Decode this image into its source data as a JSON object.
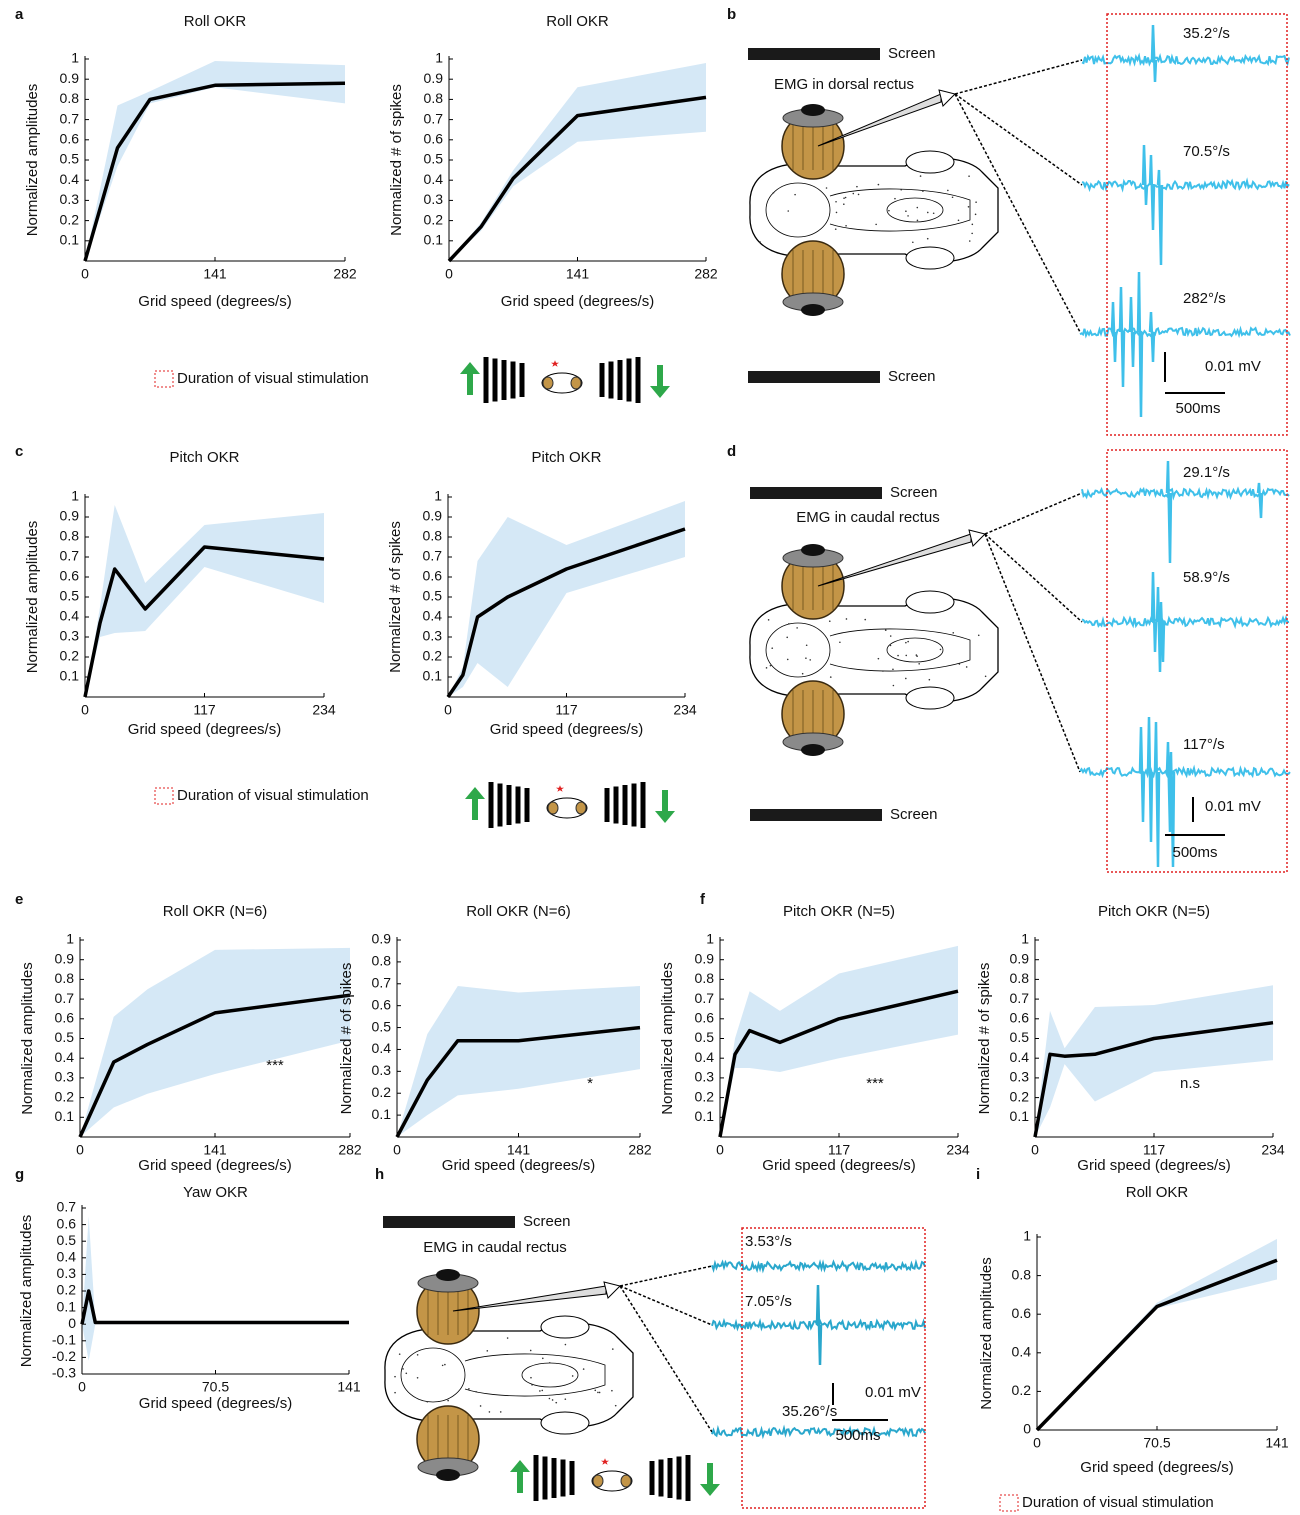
{
  "chart_data": [
    {
      "type": "line",
      "title": "Roll OKR",
      "xlabel": "Grid speed (degrees/s)",
      "ylabel": "Normalized amplitudes",
      "x": [
        0,
        35.2,
        70.5,
        141,
        282
      ],
      "values": [
        0,
        0.56,
        0.8,
        0.87,
        0.88
      ],
      "band_lower": [
        0,
        0.47,
        0.78,
        0.86,
        0.78
      ],
      "band_upper": [
        0,
        0.77,
        0.84,
        0.99,
        0.97
      ],
      "color": "#000000",
      "band_color": "#d5e8f6",
      "xlim": [
        0,
        282
      ],
      "ylim": [
        0,
        1
      ],
      "xticks": [
        0,
        141,
        282
      ],
      "yticks": [
        0.1,
        0.2,
        0.3,
        0.4,
        0.5,
        0.6,
        0.7,
        0.8,
        0.9,
        1
      ]
    },
    {
      "type": "line",
      "title": "Roll OKR",
      "xlabel": "Grid speed (degrees/s)",
      "ylabel": "Normalized # of spikes",
      "x": [
        0,
        35.2,
        70.5,
        141,
        282
      ],
      "values": [
        0,
        0.17,
        0.41,
        0.72,
        0.81
      ],
      "band_lower": [
        0,
        0.15,
        0.37,
        0.59,
        0.64
      ],
      "band_upper": [
        0,
        0.19,
        0.45,
        0.86,
        0.98
      ],
      "color": "#000000",
      "band_color": "#d5e8f6",
      "xlim": [
        0,
        282
      ],
      "ylim": [
        0,
        1
      ],
      "xticks": [
        0,
        141,
        282
      ],
      "yticks": [
        0.1,
        0.2,
        0.3,
        0.4,
        0.5,
        0.6,
        0.7,
        0.8,
        0.9,
        1
      ]
    },
    {
      "type": "line",
      "title": "Pitch OKR",
      "xlabel": "Grid speed (degrees/s)",
      "ylabel": "Normalized amplitudes",
      "x": [
        0,
        14.7,
        29.1,
        58.9,
        117,
        234
      ],
      "values": [
        0,
        0.37,
        0.64,
        0.44,
        0.75,
        0.69
      ],
      "band_lower": [
        0,
        0.3,
        0.32,
        0.33,
        0.65,
        0.47
      ],
      "band_upper": [
        0,
        0.45,
        0.96,
        0.57,
        0.86,
        0.92
      ],
      "color": "#000000",
      "band_color": "#d5e8f6",
      "xlim": [
        0,
        234
      ],
      "ylim": [
        0,
        1
      ],
      "xticks": [
        0,
        117,
        234
      ],
      "yticks": [
        0.1,
        0.2,
        0.3,
        0.4,
        0.5,
        0.6,
        0.7,
        0.8,
        0.9,
        1
      ]
    },
    {
      "type": "line",
      "title": "Pitch OKR",
      "xlabel": "Grid speed (degrees/s)",
      "ylabel": "Normalized # of spikes",
      "x": [
        0,
        14.7,
        29.1,
        58.9,
        117,
        234
      ],
      "values": [
        0,
        0.11,
        0.4,
        0.5,
        0.64,
        0.84
      ],
      "band_lower": [
        0,
        0.05,
        0.17,
        0.05,
        0.52,
        0.7
      ],
      "band_upper": [
        0,
        0.15,
        0.68,
        0.9,
        0.76,
        0.98
      ],
      "color": "#000000",
      "band_color": "#d5e8f6",
      "xlim": [
        0,
        234
      ],
      "ylim": [
        0,
        1
      ],
      "xticks": [
        0,
        117,
        234
      ],
      "yticks": [
        0.1,
        0.2,
        0.3,
        0.4,
        0.5,
        0.6,
        0.7,
        0.8,
        0.9,
        1
      ]
    },
    {
      "type": "line",
      "title": "Roll OKR (N=6)",
      "xlabel": "Grid speed (degrees/s)",
      "ylabel": "Normalized amplitudes",
      "x": [
        0,
        35.2,
        70.5,
        141,
        282
      ],
      "values": [
        0,
        0.38,
        0.47,
        0.63,
        0.72
      ],
      "band_lower": [
        0,
        0.15,
        0.22,
        0.32,
        0.49
      ],
      "band_upper": [
        0,
        0.61,
        0.75,
        0.95,
        0.96
      ],
      "color": "#000000",
      "band_color": "#d5e8f6",
      "xlim": [
        0,
        282
      ],
      "ylim": [
        0,
        1
      ],
      "xticks": [
        0,
        141,
        282
      ],
      "yticks": [
        0.1,
        0.2,
        0.3,
        0.4,
        0.5,
        0.6,
        0.7,
        0.8,
        0.9,
        1
      ],
      "annotation": "***"
    },
    {
      "type": "line",
      "title": "Roll OKR (N=6)",
      "xlabel": "Grid speed (degrees/s)",
      "ylabel": "Normalized # of spikes",
      "x": [
        0,
        35.2,
        70.5,
        141,
        282
      ],
      "values": [
        0,
        0.26,
        0.44,
        0.44,
        0.5
      ],
      "band_lower": [
        0,
        0.1,
        0.19,
        0.22,
        0.31
      ],
      "band_upper": [
        0,
        0.47,
        0.69,
        0.66,
        0.69
      ],
      "color": "#000000",
      "band_color": "#d5e8f6",
      "xlim": [
        0,
        282
      ],
      "ylim": [
        0,
        0.9
      ],
      "xticks": [
        0,
        141,
        282
      ],
      "yticks": [
        0.1,
        0.2,
        0.3,
        0.4,
        0.5,
        0.6,
        0.7,
        0.8,
        0.9
      ],
      "annotation": "*"
    },
    {
      "type": "line",
      "title": "Pitch OKR (N=5)",
      "xlabel": "Grid speed (degrees/s)",
      "ylabel": "Normalized amplitudes",
      "x": [
        0,
        14.7,
        29.1,
        58.9,
        117,
        234
      ],
      "values": [
        0,
        0.42,
        0.54,
        0.48,
        0.6,
        0.74
      ],
      "band_lower": [
        0,
        0.35,
        0.35,
        0.33,
        0.4,
        0.52
      ],
      "band_upper": [
        0,
        0.5,
        0.74,
        0.64,
        0.83,
        0.97
      ],
      "color": "#000000",
      "band_color": "#d5e8f6",
      "xlim": [
        0,
        234
      ],
      "ylim": [
        0,
        1
      ],
      "xticks": [
        0,
        117,
        234
      ],
      "yticks": [
        0.1,
        0.2,
        0.3,
        0.4,
        0.5,
        0.6,
        0.7,
        0.8,
        0.9,
        1
      ],
      "annotation": "***"
    },
    {
      "type": "line",
      "title": "Pitch OKR (N=5)",
      "xlabel": "Grid speed (degrees/s)",
      "ylabel": "Normalized # of spikes",
      "x": [
        0,
        14.7,
        29.1,
        58.9,
        117,
        234
      ],
      "values": [
        0,
        0.42,
        0.41,
        0.42,
        0.5,
        0.58
      ],
      "band_lower": [
        0,
        0.15,
        0.37,
        0.18,
        0.33,
        0.39
      ],
      "band_upper": [
        0,
        0.64,
        0.45,
        0.66,
        0.67,
        0.77
      ],
      "color": "#000000",
      "band_color": "#d5e8f6",
      "xlim": [
        0,
        234
      ],
      "ylim": [
        0,
        1
      ],
      "xticks": [
        0,
        117,
        234
      ],
      "yticks": [
        0.1,
        0.2,
        0.3,
        0.4,
        0.5,
        0.6,
        0.7,
        0.8,
        0.9,
        1
      ],
      "annotation": "n.s"
    },
    {
      "type": "line",
      "title": "Yaw OKR",
      "xlabel": "Grid speed (degrees/s)",
      "ylabel": "Normalized amplitudes",
      "x": [
        0,
        3.53,
        7.05,
        35.26,
        141
      ],
      "values": [
        0,
        0.2,
        0.01,
        0.01,
        0.01
      ],
      "band_lower": [
        0,
        -0.22,
        0,
        0,
        0
      ],
      "band_upper": [
        0,
        0.65,
        0.02,
        0.02,
        0.02
      ],
      "color": "#000000",
      "band_color": "#d5e8f6",
      "xlim": [
        0,
        141
      ],
      "ylim": [
        -0.3,
        0.7
      ],
      "xticks": [
        0,
        70.5,
        141
      ],
      "yticks": [
        -0.3,
        -0.2,
        -0.1,
        0,
        0.1,
        0.2,
        0.3,
        0.4,
        0.5,
        0.6,
        0.7
      ]
    },
    {
      "type": "line",
      "title": "Roll OKR",
      "xlabel": "Grid speed (degrees/s)",
      "ylabel": "Normalized amplitudes",
      "x": [
        0,
        70.5,
        141
      ],
      "values": [
        0,
        0.64,
        0.88
      ],
      "band_lower": [
        0,
        0.63,
        0.78
      ],
      "band_upper": [
        0,
        0.66,
        0.99
      ],
      "color": "#000000",
      "band_color": "#d5e8f6",
      "xlim": [
        0,
        141
      ],
      "ylim": [
        0,
        1
      ],
      "xticks": [
        0,
        70.5,
        141
      ],
      "yticks": [
        0,
        0.2,
        0.4,
        0.6,
        0.8,
        1
      ]
    }
  ],
  "panel_labels": [
    "a",
    "b",
    "c",
    "d",
    "e",
    "f",
    "g",
    "h",
    "i"
  ],
  "recordings": [
    {
      "screens": [
        "Screen",
        "Screen"
      ],
      "electrode": "EMG in dorsal rectus",
      "speeds": [
        "35.2°/s",
        "70.5°/s",
        "282°/s"
      ],
      "scale_voltage": "0.01 mV",
      "scale_time": "500ms"
    },
    {
      "screens": [
        "Screen",
        "Screen"
      ],
      "electrode": "EMG in caudal rectus",
      "speeds": [
        "29.1°/s",
        "58.9°/s",
        "117°/s"
      ],
      "scale_voltage": "0.01 mV",
      "scale_time": "500ms"
    },
    {
      "screens": [
        "Screen"
      ],
      "electrode": "EMG in caudal rectus",
      "speeds": [
        "3.53°/s",
        "7.05°/s",
        "35.26°/s"
      ],
      "scale_voltage": "0.01 mV",
      "scale_time": "500ms"
    }
  ],
  "stimulus_legends": [
    "Duration of visual stimulation",
    "Duration of visual stimulation",
    "Duration of visual stimulation"
  ]
}
